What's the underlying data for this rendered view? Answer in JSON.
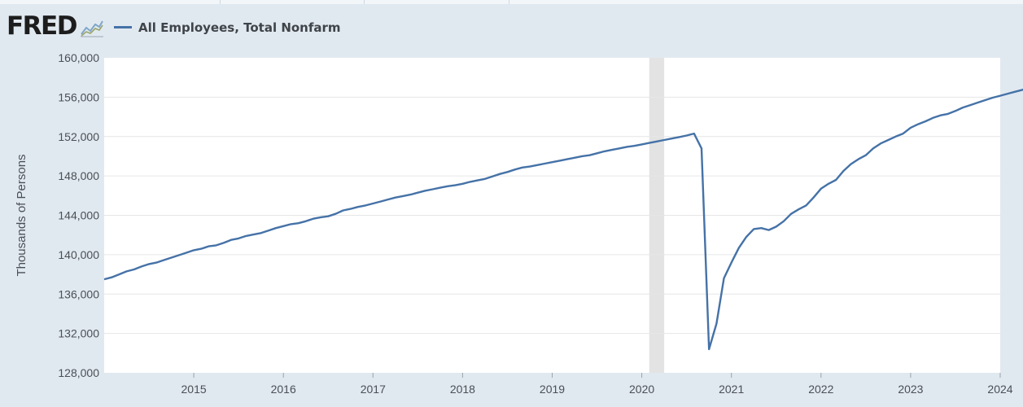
{
  "header": {
    "logo_text": "FRED",
    "series_label": "All Employees, Total Nonfarm"
  },
  "colors": {
    "series": "#4572a7",
    "recession": "#e3e3e3",
    "background": "#e1e9f0",
    "plot_bg": "#ffffff",
    "grid": "#e6e6e6"
  },
  "chart_data": {
    "type": "line",
    "title": "",
    "xlabel": "",
    "ylabel": "Thousands of Persons",
    "ylim": [
      128000,
      160000
    ],
    "xlim": [
      "2014-01",
      "2024-01"
    ],
    "yticks": [
      "128,000",
      "132,000",
      "136,000",
      "140,000",
      "144,000",
      "148,000",
      "152,000",
      "156,000",
      "160,000"
    ],
    "xticks": [
      "2015",
      "2016",
      "2017",
      "2018",
      "2019",
      "2020",
      "2021",
      "2022",
      "2023",
      "2024"
    ],
    "recessions": [
      {
        "start": "2020-02",
        "end": "2020-04"
      }
    ],
    "series": [
      {
        "name": "All Employees, Total Nonfarm",
        "start": "2014-01",
        "frequency": "monthly",
        "values": [
          137500,
          137700,
          138000,
          138300,
          138500,
          138800,
          139050,
          139200,
          139450,
          139700,
          139950,
          140200,
          140450,
          140600,
          140850,
          140950,
          141200,
          141500,
          141650,
          141900,
          142050,
          142200,
          142450,
          142700,
          142900,
          143100,
          143200,
          143400,
          143650,
          143800,
          143900,
          144150,
          144500,
          144650,
          144850,
          145000,
          145200,
          145400,
          145600,
          145800,
          145950,
          146100,
          146300,
          146500,
          146650,
          146800,
          146950,
          147050,
          147200,
          147400,
          147550,
          147700,
          147950,
          148200,
          148400,
          148650,
          148850,
          148950,
          149100,
          149250,
          149400,
          149550,
          149700,
          149850,
          150000,
          150100,
          150300,
          150500,
          150650,
          150800,
          150950,
          151050,
          151200,
          151350,
          151500,
          151650,
          151800,
          151950,
          152100,
          152300,
          150800,
          130400,
          133000,
          137600,
          139200,
          140700,
          141800,
          142600,
          142700,
          142500,
          142850,
          143400,
          144150,
          144600,
          145000,
          145800,
          146700,
          147200,
          147600,
          148500,
          149200,
          149700,
          150100,
          150800,
          151300,
          151650,
          152000,
          152300,
          152900,
          153250,
          153550,
          153900,
          154150,
          154300,
          154600,
          154950,
          155200,
          155450,
          155700,
          155950,
          156150,
          156350,
          156550,
          156750,
          156950,
          157150,
          157500
        ]
      }
    ]
  }
}
